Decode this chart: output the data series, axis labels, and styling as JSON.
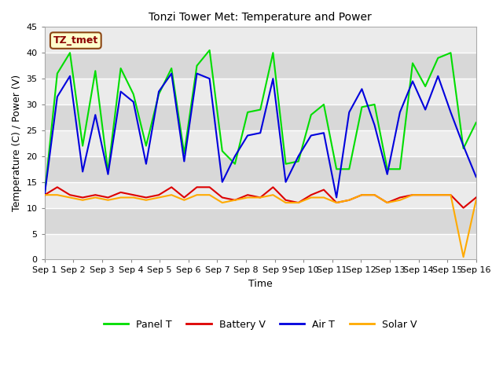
{
  "title": "Tonzi Tower Met: Temperature and Power",
  "xlabel": "Time",
  "ylabel": "Temperature (C) / Power (V)",
  "ylim": [
    0,
    45
  ],
  "yticks": [
    0,
    5,
    10,
    15,
    20,
    25,
    30,
    35,
    40,
    45
  ],
  "x_labels": [
    "Sep 1",
    "Sep 2",
    "Sep 3",
    "Sep 4",
    "Sep 5",
    "Sep 6",
    "Sep 7",
    "Sep 8",
    "Sep 9",
    "Sep 10",
    "Sep 11",
    "Sep 12",
    "Sep 13",
    "Sep 14",
    "Sep 15",
    "Sep 16"
  ],
  "annotation_text": "TZ_tmet",
  "panel_t_color": "#00dd00",
  "battery_v_color": "#dd0000",
  "air_t_color": "#0000dd",
  "solar_v_color": "#ffaa00",
  "panel_t": [
    12.5,
    36.0,
    40.0,
    22.0,
    36.5,
    17.0,
    37.0,
    32.0,
    22.0,
    32.0,
    37.0,
    20.5,
    37.5,
    40.5,
    21.0,
    18.5,
    28.5,
    29.0,
    40.0,
    18.5,
    19.0,
    28.0,
    30.0,
    17.5,
    17.5,
    29.5,
    30.0,
    17.5,
    17.5,
    38.0,
    33.5,
    39.0,
    40.0,
    21.5,
    26.5
  ],
  "battery_v": [
    12.5,
    14.0,
    12.5,
    12.0,
    12.5,
    12.0,
    13.0,
    12.5,
    12.0,
    12.5,
    14.0,
    12.0,
    14.0,
    14.0,
    12.0,
    11.5,
    12.5,
    12.0,
    14.0,
    11.5,
    11.0,
    12.5,
    13.5,
    11.0,
    11.5,
    12.5,
    12.5,
    11.0,
    12.0,
    12.5,
    12.5,
    12.5,
    12.5,
    10.0,
    12.0
  ],
  "air_t": [
    12.5,
    31.5,
    35.5,
    17.0,
    28.0,
    16.5,
    32.5,
    30.5,
    18.5,
    32.5,
    36.0,
    19.0,
    36.0,
    35.0,
    15.0,
    20.0,
    24.0,
    24.5,
    35.0,
    15.0,
    20.0,
    24.0,
    24.5,
    12.0,
    28.5,
    33.0,
    26.0,
    16.5,
    28.5,
    34.5,
    29.0,
    35.5,
    28.5,
    22.0,
    16.0
  ],
  "solar_v": [
    12.5,
    12.5,
    12.0,
    11.5,
    12.0,
    11.5,
    12.0,
    12.0,
    11.5,
    12.0,
    12.5,
    11.5,
    12.5,
    12.5,
    11.0,
    11.5,
    12.0,
    12.0,
    12.5,
    11.0,
    11.0,
    12.0,
    12.0,
    11.0,
    11.5,
    12.5,
    12.5,
    11.0,
    11.5,
    12.5,
    12.5,
    12.5,
    12.5,
    0.5,
    11.5
  ],
  "figwidth": 6.4,
  "figheight": 4.8,
  "dpi": 100
}
